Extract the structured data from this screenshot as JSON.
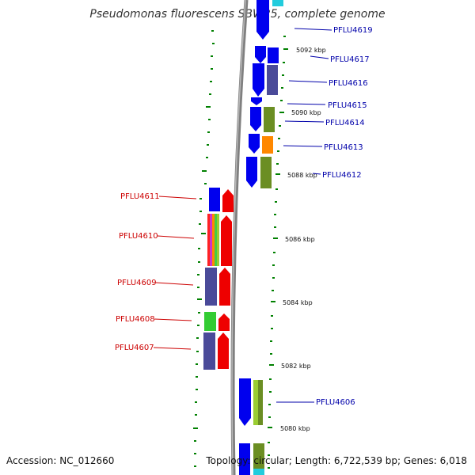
{
  "title": "Pseudomonas fluorescens SBW25, complete genome",
  "footer": {
    "accession": "Accession: NC_012660",
    "summary": "Topology: circular; Length: 6,722,539 bp; Genes: 6,018"
  },
  "colors": {
    "forward_label": "#0000aa",
    "reverse_label": "#cc0000",
    "backbone": "#808080",
    "tick": "#008000"
  },
  "kbp_labels": [
    "5092 kbp",
    "5090 kbp",
    "5088 kbp",
    "5086 kbp",
    "5084 kbp",
    "5082 kbp",
    "5080 kbp"
  ],
  "forward_genes": [
    "PFLU4619",
    "PFLU4617",
    "PFLU4616",
    "PFLU4615",
    "PFLU4614",
    "PFLU4613",
    "PFLU4612",
    "PFLU4606"
  ],
  "reverse_genes": [
    "PFLU4611",
    "PFLU4610",
    "PFLU4609",
    "PFLU4608",
    "PFLU4607"
  ]
}
